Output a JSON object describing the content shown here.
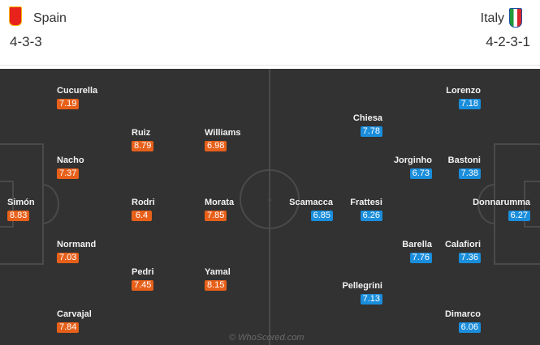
{
  "home": {
    "name": "Spain",
    "formation": "4-3-3",
    "color": "#e7601a",
    "crest": "spain-crest",
    "players": [
      {
        "name": "Simón",
        "rating": "8.83"
      },
      {
        "name": "Cucurella",
        "rating": "7.19"
      },
      {
        "name": "Nacho",
        "rating": "7.37"
      },
      {
        "name": "Normand",
        "rating": "7.03"
      },
      {
        "name": "Carvajal",
        "rating": "7.84"
      },
      {
        "name": "Ruiz",
        "rating": "8.79"
      },
      {
        "name": "Rodri",
        "rating": "6.4"
      },
      {
        "name": "Pedri",
        "rating": "7.45"
      },
      {
        "name": "Williams",
        "rating": "6.98"
      },
      {
        "name": "Morata",
        "rating": "7.85"
      },
      {
        "name": "Yamal",
        "rating": "8.15"
      }
    ]
  },
  "away": {
    "name": "Italy",
    "formation": "4-2-3-1",
    "color": "#1a8ddb",
    "crest": "italy-crest",
    "players": [
      {
        "name": "Donnarumma",
        "rating": "6.27"
      },
      {
        "name": "Lorenzo",
        "rating": "7.18"
      },
      {
        "name": "Bastoni",
        "rating": "7.38"
      },
      {
        "name": "Calafiori",
        "rating": "7.36"
      },
      {
        "name": "Dimarco",
        "rating": "6.06"
      },
      {
        "name": "Jorginho",
        "rating": "6.73"
      },
      {
        "name": "Barella",
        "rating": "7.76"
      },
      {
        "name": "Chiesa",
        "rating": "7.78"
      },
      {
        "name": "Frattesi",
        "rating": "6.26"
      },
      {
        "name": "Pellegrini",
        "rating": "7.13"
      },
      {
        "name": "Scamacca",
        "rating": "6.85"
      }
    ]
  },
  "watermark": "© WhoScored.com"
}
